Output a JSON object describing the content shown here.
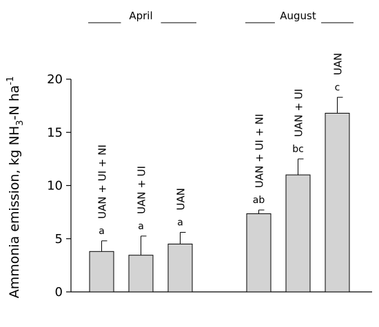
{
  "chart_data": {
    "type": "bar",
    "ylabel_main": "Ammonia emission, kg NH",
    "ylabel_sub": "3",
    "ylabel_mid": "-N ha",
    "ylabel_sup": "-1",
    "ylim": [
      0,
      20
    ],
    "yticks": [
      0,
      5,
      10,
      15,
      20
    ],
    "grid": false,
    "bar_color": "#d3d3d3",
    "groups": [
      {
        "name": "April",
        "bars": [
          {
            "label": "UAN + UI + NI",
            "value": 3.8,
            "err": 1.0,
            "sig": "a"
          },
          {
            "label": "UAN + UI",
            "value": 3.45,
            "err": 1.8,
            "sig": "a"
          },
          {
            "label": "UAN",
            "value": 4.5,
            "err": 1.1,
            "sig": "a"
          }
        ]
      },
      {
        "name": "August",
        "bars": [
          {
            "label": "UAN + UI + NI",
            "value": 7.35,
            "err": 0.35,
            "sig": "ab"
          },
          {
            "label": "UAN + UI",
            "value": 11.0,
            "err": 1.5,
            "sig": "bc"
          },
          {
            "label": "UAN",
            "value": 16.8,
            "err": 1.5,
            "sig": "c"
          }
        ]
      }
    ]
  }
}
